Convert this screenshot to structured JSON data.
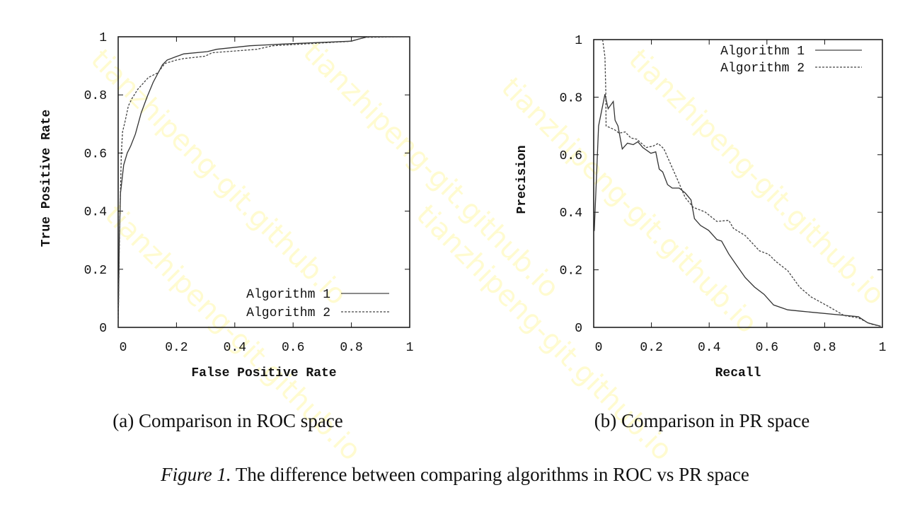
{
  "watermark": "tianzhipeng-git.github.io",
  "figure_caption": {
    "label": "Figure 1.",
    "text": " The difference between comparing algorithms in ROC vs PR space"
  },
  "chart_data": [
    {
      "type": "line",
      "caption": "(a) Comparison in ROC space",
      "xlabel": "False Positive Rate",
      "ylabel": "True Positive Rate",
      "xlim": [
        0,
        1
      ],
      "ylim": [
        0,
        1
      ],
      "xticks": [
        "0",
        "0.2",
        "0.4",
        "0.6",
        "0.8",
        "1"
      ],
      "yticks": [
        "0",
        "0.2",
        "0.4",
        "0.6",
        "0.8",
        "1"
      ],
      "grid": false,
      "legend": "bottom-right",
      "series": [
        {
          "name": "Algorithm 1",
          "style": "solid",
          "x": [
            0,
            0.004,
            0.008,
            0.019,
            0.031,
            0.043,
            0.059,
            0.079,
            0.1,
            0.12,
            0.152,
            0.168,
            0.2,
            0.225,
            0.306,
            0.338,
            0.452,
            0.565,
            0.8,
            0.832,
            0.857,
            1
          ],
          "y": [
            0,
            0.3,
            0.462,
            0.559,
            0.6,
            0.624,
            0.665,
            0.738,
            0.795,
            0.843,
            0.904,
            0.92,
            0.932,
            0.941,
            0.949,
            0.957,
            0.969,
            0.975,
            0.985,
            0.994,
            1,
            1
          ]
        },
        {
          "name": "Algorithm 2",
          "style": "dashed",
          "x": [
            0,
            0.005,
            0.011,
            0.015,
            0.023,
            0.035,
            0.047,
            0.067,
            0.104,
            0.136,
            0.16,
            0.2,
            0.225,
            0.298,
            0.322,
            0.476,
            0.53,
            0.792,
            0.849,
            1
          ],
          "y": [
            0,
            0.352,
            0.6,
            0.673,
            0.706,
            0.762,
            0.787,
            0.819,
            0.86,
            0.876,
            0.908,
            0.92,
            0.925,
            0.933,
            0.945,
            0.957,
            0.969,
            0.984,
            0.998,
            1
          ]
        }
      ]
    },
    {
      "type": "line",
      "caption": "(b) Comparison in PR space",
      "xlabel": "Recall",
      "ylabel": "Precision",
      "xlim": [
        0,
        1
      ],
      "ylim": [
        0,
        1
      ],
      "xticks": [
        "0",
        "0.2",
        "0.4",
        "0.6",
        "0.8",
        "1"
      ],
      "yticks": [
        "0",
        "0.2",
        "0.4",
        "0.6",
        "0.8",
        "1"
      ],
      "grid": false,
      "legend": "top-right",
      "series": [
        {
          "name": "Algorithm 1",
          "style": "solid",
          "x": [
            0.002,
            0.017,
            0.039,
            0.05,
            0.068,
            0.074,
            0.084,
            0.099,
            0.117,
            0.137,
            0.153,
            0.17,
            0.198,
            0.215,
            0.227,
            0.239,
            0.256,
            0.272,
            0.296,
            0.317,
            0.337,
            0.349,
            0.37,
            0.398,
            0.427,
            0.443,
            0.468,
            0.496,
            0.525,
            0.557,
            0.59,
            0.623,
            0.672,
            0.72,
            0.917,
            0.949,
            0.994
          ],
          "y": [
            0.335,
            0.7,
            0.81,
            0.76,
            0.785,
            0.72,
            0.7,
            0.62,
            0.64,
            0.635,
            0.645,
            0.625,
            0.605,
            0.61,
            0.55,
            0.54,
            0.496,
            0.484,
            0.484,
            0.467,
            0.443,
            0.378,
            0.354,
            0.337,
            0.305,
            0.3,
            0.255,
            0.214,
            0.173,
            0.14,
            0.115,
            0.078,
            0.061,
            0.056,
            0.037,
            0.016,
            0.004
          ]
        },
        {
          "name": "Algorithm 2",
          "style": "dashed",
          "x": [
            0.031,
            0.039,
            0.042,
            0.043,
            0.072,
            0.088,
            0.109,
            0.129,
            0.149,
            0.182,
            0.206,
            0.223,
            0.243,
            0.264,
            0.296,
            0.317,
            0.345,
            0.386,
            0.427,
            0.468,
            0.484,
            0.525,
            0.574,
            0.606,
            0.631,
            0.672,
            0.713,
            0.753,
            0.811,
            0.868,
            0.917,
            0.958,
            0.994
          ],
          "y": [
            1.0,
            0.94,
            0.82,
            0.7,
            0.687,
            0.675,
            0.679,
            0.658,
            0.654,
            0.625,
            0.63,
            0.639,
            0.621,
            0.573,
            0.5,
            0.451,
            0.417,
            0.401,
            0.368,
            0.372,
            0.344,
            0.319,
            0.266,
            0.254,
            0.229,
            0.197,
            0.14,
            0.106,
            0.074,
            0.041,
            0.033,
            0.012,
            0.004
          ]
        }
      ]
    }
  ]
}
